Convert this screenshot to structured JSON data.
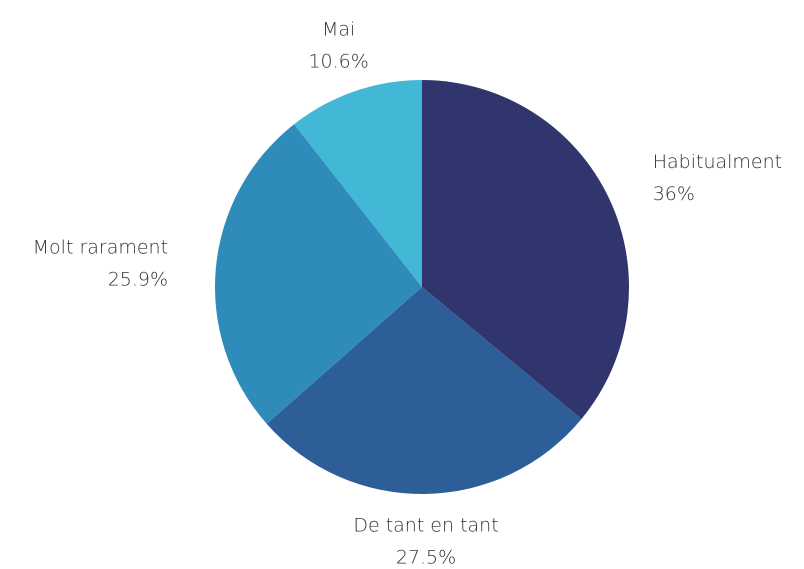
{
  "chart_data": {
    "type": "pie",
    "categories": [
      "Habitualment",
      "De tant en tant",
      "Molt rarament",
      "Mai"
    ],
    "values": [
      36,
      27.5,
      25.9,
      10.6
    ],
    "value_labels": [
      "36%",
      "27.5%",
      "25.9%",
      "10.6%"
    ],
    "colors": [
      "#31356e",
      "#2e5e98",
      "#2e8bba",
      "#42b8d6"
    ]
  }
}
